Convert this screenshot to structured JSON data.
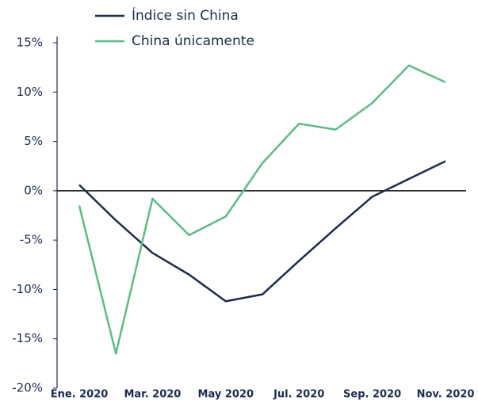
{
  "chart_data": {
    "type": "line",
    "categories": [
      "Ene. 2020",
      null,
      "Mar. 2020",
      null,
      "May 2020",
      null,
      "Jul. 2020",
      null,
      "Sep. 2020",
      null,
      "Nov. 2020"
    ],
    "series": [
      {
        "name": "Índice sin China",
        "color": "#1c2b4f",
        "values": [
          0.6,
          -3.0,
          -6.3,
          -8.5,
          -11.2,
          -10.5,
          -7.1,
          -3.8,
          -0.6,
          1.2,
          3.0
        ]
      },
      {
        "name": "China únicamente",
        "color": "#5dbb84",
        "values": [
          -1.5,
          -16.5,
          -0.8,
          -4.5,
          -2.6,
          2.8,
          6.8,
          6.2,
          8.9,
          12.7,
          11.0
        ]
      }
    ],
    "ylim": [
      -20,
      15
    ],
    "yticks": [
      {
        "value": -20,
        "label": "-20%"
      },
      {
        "value": -15,
        "label": "-15%"
      },
      {
        "value": -10,
        "label": "-10%"
      },
      {
        "value": -5,
        "label": "-5%"
      },
      {
        "value": 0,
        "label": "0%"
      },
      {
        "value": 5,
        "label": "5%"
      },
      {
        "value": 10,
        "label": "10%"
      },
      {
        "value": 15,
        "label": "15%"
      }
    ],
    "legend": "top"
  }
}
